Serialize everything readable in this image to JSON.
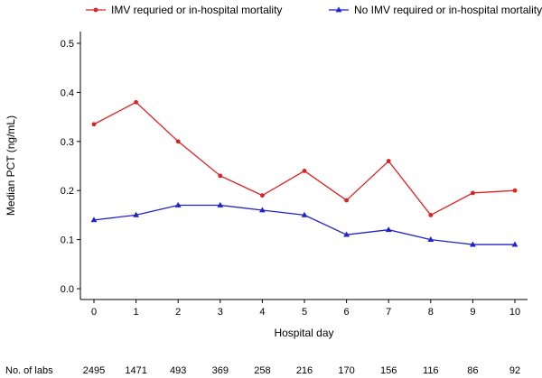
{
  "chart_data": {
    "type": "line",
    "title": "",
    "xlabel": "Hospital day",
    "ylabel": "Median PCT (ng/mL)",
    "x": [
      0,
      1,
      2,
      3,
      4,
      5,
      6,
      7,
      8,
      9,
      10
    ],
    "x_tick_labels": [
      "0",
      "1",
      "2",
      "3",
      "4",
      "5",
      "6",
      "7",
      "8",
      "9",
      "10"
    ],
    "ylim": [
      0,
      0.5
    ],
    "y_ticks": [
      0.0,
      0.1,
      0.2,
      0.3,
      0.4,
      0.5
    ],
    "y_tick_labels": [
      "0.0",
      "0.1",
      "0.2",
      "0.3",
      "0.4",
      "0.5"
    ],
    "legend_position": "top",
    "grid": false,
    "series": [
      {
        "name": "IMV requried or in-hospital mortality",
        "color": "#dd2222",
        "marker": "circle",
        "values": [
          0.335,
          0.38,
          0.3,
          0.23,
          0.19,
          0.24,
          0.18,
          0.26,
          0.15,
          0.195,
          0.2
        ]
      },
      {
        "name": "No IMV required or in-hospital mortality",
        "color": "#2222cc",
        "marker": "triangle",
        "values": [
          0.14,
          0.15,
          0.17,
          0.17,
          0.16,
          0.15,
          0.11,
          0.12,
          0.1,
          0.09,
          0.09
        ]
      }
    ],
    "labs_label": "No. of labs",
    "labs_counts": [
      "2495",
      "1471",
      "493",
      "369",
      "258",
      "216",
      "170",
      "156",
      "116",
      "86",
      "92"
    ]
  }
}
